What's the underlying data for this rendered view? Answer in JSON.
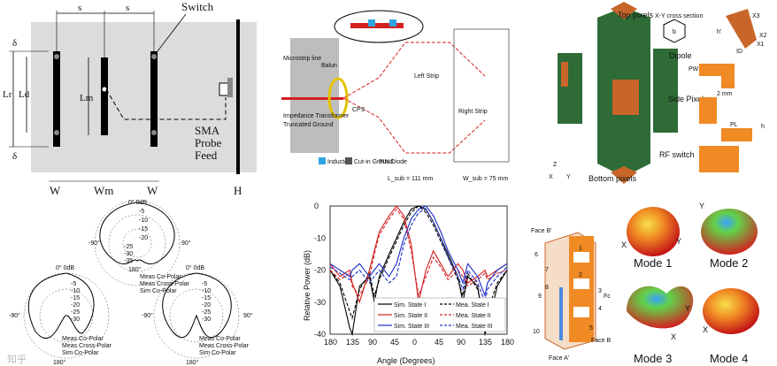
{
  "colors": {
    "board_gray": "#dcdcdc",
    "dark_green": "#2e6b36",
    "copper": "#c8662a",
    "orange": "#f08a24",
    "red": "#d32020",
    "blue": "#1a2cc8",
    "black": "#000000"
  },
  "antenna_layout": {
    "labels": {
      "s1": "s",
      "s2": "s",
      "switch": "Switch",
      "delta_top": "δ",
      "delta_bot": "δ",
      "lr": "Lr",
      "ld": "Ld",
      "lm": "Lm",
      "sma": "SMA",
      "probe": "Probe",
      "feed": "Feed",
      "w1": "W",
      "wm": "Wm",
      "w2": "W",
      "h": "H"
    }
  },
  "feed_network": {
    "labels": {
      "microstrip_line": "Microstrip line",
      "balun": "Balun",
      "impedance_transformer": "Impedance Transformer",
      "truncated_ground": "Truncated Ground",
      "cps": "CPS",
      "left_strip": "Left Strip",
      "right_strip": "Right Strip",
      "pin_diode": "PIN Diode",
      "inductor": "Inductor",
      "cut_in_ground": "Cut-in Ground",
      "dimension_w": "W_sub = 75 mm",
      "dimension_l": "L_sub = 111 mm"
    }
  },
  "reconfig_3d": {
    "labels": {
      "top_pixels": "Top pixels",
      "xy_cross": "X-Y cross section",
      "dipole": "Dipole",
      "side_pixels": "Side Pixels",
      "rf_switch": "RF switch",
      "bottom_pixels": "Bottom pixels",
      "pw": "PW",
      "two_mm": "2 mm",
      "pl": "PL",
      "h": "h",
      "x3": "X3",
      "x2": "X2",
      "x1": "X1",
      "id": "ID",
      "h_prime": "h'",
      "b": "b",
      "z": "Z",
      "x": "X",
      "y": "Y"
    }
  },
  "polar_patterns": {
    "plots": [
      {
        "top_label": "0° 0dB",
        "left_label": "-90°",
        "right_label": "90°",
        "bottom_label": "180°",
        "ticks": [
          "-5",
          "-10",
          "-15",
          "-20",
          "-25",
          "-30",
          "-35"
        ],
        "legend": [
          "Meas Co-Polar",
          "Meas Cross-Polar",
          "Sim Co-Polar"
        ]
      },
      {
        "top_label": "0° 0dB",
        "left_label": "-90°",
        "right_label": "",
        "bottom_label": "180°",
        "ticks": [
          "-5",
          "-10",
          "-15",
          "-20",
          "-25",
          "-30"
        ],
        "legend": [
          "Meas Co-Polar",
          "Meas Cross-Polar",
          "Sim Co-Polar"
        ]
      },
      {
        "top_label": "0° 0dB",
        "left_label": "-90°",
        "right_label": "90°",
        "bottom_label": "180°",
        "ticks": [
          "-5",
          "-10",
          "-15",
          "-20",
          "-25",
          "-30"
        ],
        "legend": [
          "Meas Co-Polar",
          "Meas Cross-Polar",
          "Sim Co-Polar"
        ]
      }
    ]
  },
  "chart_data": {
    "type": "line",
    "title": "",
    "xlabel": "Angle (Degrees)",
    "ylabel": "Relative Power (dB)",
    "xlim": [
      -180,
      180
    ],
    "ylim": [
      -40,
      0
    ],
    "xticks": [
      "180",
      "135",
      "90",
      "45",
      "0",
      "45",
      "90",
      "135",
      "180"
    ],
    "yticks": [
      "0",
      "-10",
      "-20",
      "-30",
      "-40"
    ],
    "x": [
      -180,
      -160,
      -140,
      -135,
      -120,
      -100,
      -90,
      -80,
      -60,
      -45,
      -30,
      -15,
      0,
      15,
      30,
      45,
      60,
      80,
      90,
      100,
      120,
      135,
      140,
      160,
      180
    ],
    "series": [
      {
        "name": "Sim. State I",
        "color": "#000000",
        "dash": "solid",
        "values": [
          -20,
          -25,
          -38,
          -40,
          -25,
          -22,
          -30,
          -22,
          -15,
          -10,
          -5,
          -1,
          0,
          -1,
          -5,
          -10,
          -15,
          -22,
          -30,
          -22,
          -25,
          -40,
          -38,
          -25,
          -20
        ]
      },
      {
        "name": "Mea. State I",
        "color": "#000000",
        "dash": "dash",
        "values": [
          -20,
          -24,
          -33,
          -35,
          -26,
          -21,
          -28,
          -23,
          -16,
          -11,
          -6,
          -2,
          0,
          -2,
          -6,
          -11,
          -16,
          -23,
          -28,
          -21,
          -26,
          -35,
          -33,
          -24,
          -20
        ]
      },
      {
        "name": "Sim. State II",
        "color": "#d32020",
        "dash": "solid",
        "values": [
          -18,
          -22,
          -20,
          -24,
          -30,
          -20,
          -14,
          -8,
          -3,
          0,
          -3,
          -12,
          -30,
          -20,
          -14,
          -18,
          -22,
          -18,
          -20,
          -24,
          -22,
          -20,
          -22,
          -20,
          -18
        ]
      },
      {
        "name": "Mea. State II",
        "color": "#d32020",
        "dash": "dash",
        "values": [
          -20,
          -23,
          -21,
          -25,
          -28,
          -22,
          -15,
          -9,
          -4,
          -1,
          -4,
          -14,
          -28,
          -22,
          -16,
          -19,
          -23,
          -20,
          -22,
          -25,
          -23,
          -21,
          -23,
          -21,
          -20
        ]
      },
      {
        "name": "Sim. State III",
        "color": "#1a2cc8",
        "dash": "solid",
        "values": [
          -18,
          -20,
          -22,
          -20,
          -18,
          -22,
          -20,
          -18,
          -22,
          -18,
          -10,
          -4,
          -1,
          0,
          -3,
          -8,
          -14,
          -20,
          -24,
          -18,
          -22,
          -28,
          -24,
          -20,
          -18
        ]
      },
      {
        "name": "Mea. State III",
        "color": "#1a2cc8",
        "dash": "dash",
        "values": [
          -19,
          -21,
          -23,
          -22,
          -20,
          -24,
          -22,
          -20,
          -24,
          -22,
          -12,
          -6,
          -2,
          -1,
          -5,
          -10,
          -16,
          -22,
          -26,
          -20,
          -24,
          -30,
          -26,
          -22,
          -19
        ]
      }
    ]
  },
  "pixel_antenna": {
    "labels": {
      "face_b_top": "Face B'",
      "face_a": "Face A'",
      "face_b": "Face B",
      "fc": "Fc",
      "n6": "6",
      "n7": "7",
      "n8": "8",
      "n9": "9",
      "n10": "10",
      "n1": "1",
      "n2": "2",
      "n3": "3",
      "n4": "4",
      "n5": "5"
    }
  },
  "modes": [
    {
      "label": "Mode 1",
      "x": "X",
      "y": "Y"
    },
    {
      "label": "Mode 2",
      "x": "",
      "y": "Y"
    },
    {
      "label": "Mode 3",
      "x": "X",
      "y": "Y"
    },
    {
      "label": "Mode 4",
      "x": "X",
      "y": ""
    }
  ],
  "watermark": "知乎"
}
